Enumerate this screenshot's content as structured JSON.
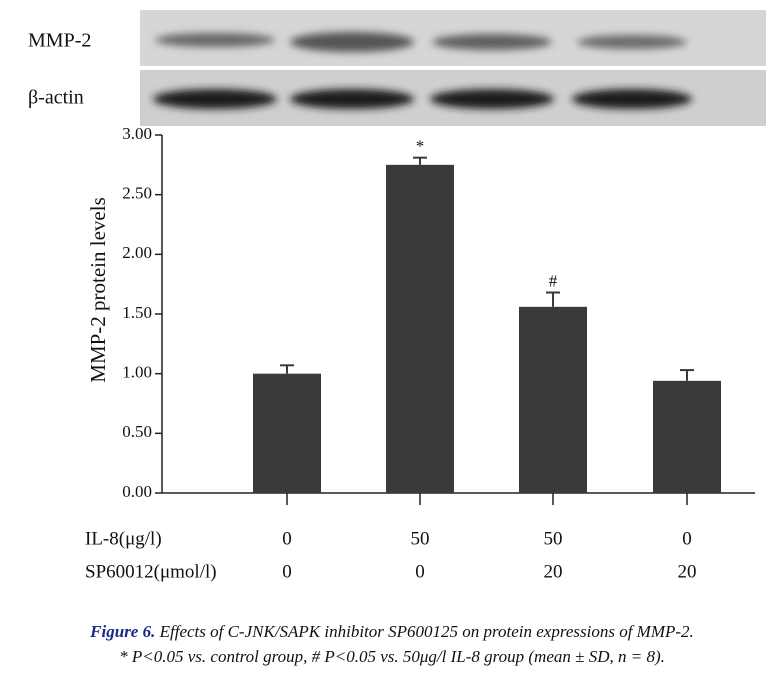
{
  "chart_data": {
    "type": "bar",
    "blot_labels": [
      "MMP-2",
      "β-actin"
    ],
    "ylabel": "MMP-2 protein levels",
    "categories": [
      null,
      null,
      null,
      null
    ],
    "x_rows": [
      {
        "label": "IL-8(μg/l)",
        "values": [
          "0",
          "50",
          "50",
          "0"
        ]
      },
      {
        "label": "SP60012(μmol/l)",
        "values": [
          "0",
          "0",
          "20",
          "20"
        ]
      }
    ],
    "values": [
      1.0,
      2.75,
      1.56,
      0.94
    ],
    "errors": [
      0.07,
      0.06,
      0.12,
      0.09
    ],
    "bar_annotations": [
      null,
      "*",
      "#",
      null
    ],
    "color": "#3a3a3a",
    "ylim": [
      0,
      3
    ],
    "yticks": [
      {
        "value": 0,
        "label": "0.00"
      },
      {
        "value": 0.5,
        "label": "0.50"
      },
      {
        "value": 1,
        "label": "1.00"
      },
      {
        "value": 1.5,
        "label": "1.50"
      },
      {
        "value": 2,
        "label": "2.00"
      },
      {
        "value": 2.5,
        "label": "2.50"
      },
      {
        "value": 3,
        "label": "3.00"
      }
    ],
    "caption": {
      "label": "Figure 6.",
      "text": "Effects of C-JNK/SAPK inhibitor SP600125 on protein expressions of MMP-2.",
      "note": "* P<0.05 vs. control group, # P<0.05 vs. 50μg/l IL-8 group (mean ± SD, n = 8)."
    }
  }
}
